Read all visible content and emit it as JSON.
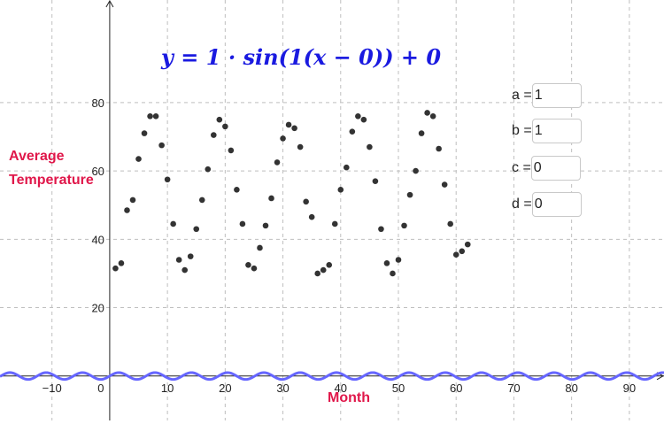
{
  "equation": "y = 1 · sin(1(x − 0)) + 0",
  "params": [
    {
      "label": "a =",
      "value": "1"
    },
    {
      "label": "b =",
      "value": "1"
    },
    {
      "label": "c =",
      "value": "0"
    },
    {
      "label": "d =",
      "value": "0"
    }
  ],
  "chart_data": {
    "type": "scatter",
    "xlabel": "Month",
    "ylabel_lines": [
      "Average",
      "Temperature"
    ],
    "xlim": [
      -19,
      96
    ],
    "ylim": [
      -13,
      110
    ],
    "xticks": [
      -10,
      0,
      10,
      20,
      30,
      40,
      50,
      60,
      70,
      80,
      90
    ],
    "yticks": [
      20,
      40,
      60,
      80
    ],
    "grid": true,
    "series": [
      {
        "color": "#333333",
        "x": [
          1,
          2,
          3,
          4,
          5,
          6,
          7,
          8,
          9,
          10,
          11,
          12,
          13,
          14,
          15,
          16,
          17,
          18,
          19,
          20,
          21,
          22,
          23,
          24,
          25,
          26,
          27,
          28,
          29,
          30,
          31,
          32,
          33,
          34,
          35,
          36,
          37,
          38,
          39,
          40,
          41,
          42,
          43,
          44,
          45,
          46,
          47,
          48,
          49,
          50,
          51,
          52,
          53,
          54,
          55,
          56,
          57,
          58,
          59,
          60,
          61,
          62
        ],
        "y": [
          31.5,
          33,
          48.5,
          51.5,
          63.5,
          71,
          76,
          76,
          67.5,
          57.5,
          44.5,
          34,
          31,
          35,
          43,
          51.5,
          60.5,
          70.5,
          75,
          73,
          66,
          54.5,
          44.5,
          32.5,
          31.5,
          37.5,
          44,
          52,
          62.5,
          69.5,
          73.5,
          72.5,
          67,
          51,
          46.5,
          30,
          31,
          32.5,
          44.5,
          54.5,
          61,
          71.5,
          76,
          75,
          67,
          57,
          43,
          33,
          30,
          34,
          44,
          53,
          60,
          71,
          77,
          76,
          66.5,
          56,
          44.5,
          35.5,
          36.5,
          38.5
        ]
      },
      {
        "name": "y = 1 · sin(1(x − 0)) + 0",
        "type": "line",
        "color": "#6666ff",
        "function": {
          "a": 1,
          "b": 1,
          "c": 0,
          "d": 0
        }
      }
    ]
  }
}
